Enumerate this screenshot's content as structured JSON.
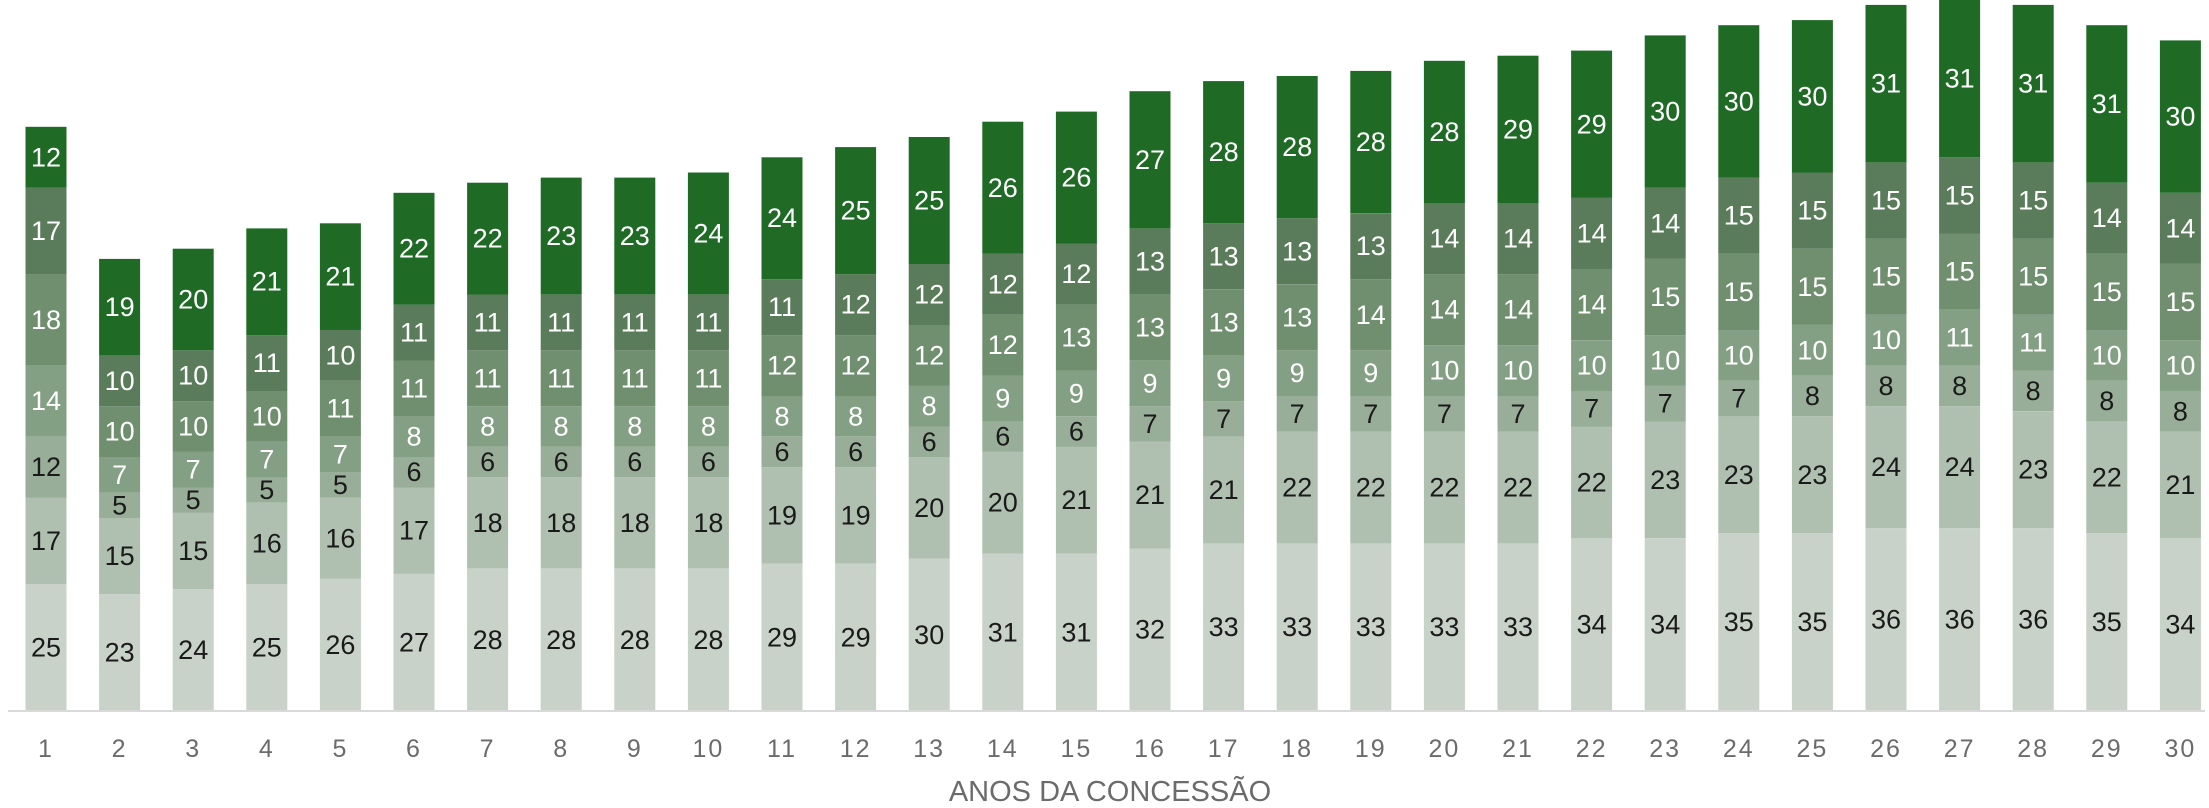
{
  "chart_data": {
    "type": "bar",
    "stacked": true,
    "xlabel": "ANOS DA CONCESSÃO",
    "ylabel": "",
    "title": "",
    "grid": false,
    "legend": "none",
    "categories": [
      "1",
      "2",
      "3",
      "4",
      "5",
      "6",
      "7",
      "8",
      "9",
      "10",
      "11",
      "12",
      "13",
      "14",
      "15",
      "16",
      "17",
      "18",
      "19",
      "20",
      "21",
      "22",
      "23",
      "24",
      "25",
      "26",
      "27",
      "28",
      "29",
      "30"
    ],
    "series": [
      {
        "color": "#c8d2c8",
        "label_color": "#1a1a1a",
        "values": [
          25,
          23,
          24,
          25,
          26,
          27,
          28,
          28,
          28,
          28,
          29,
          29,
          30,
          31,
          31,
          32,
          33,
          33,
          33,
          33,
          33,
          34,
          34,
          35,
          35,
          36,
          36,
          36,
          35,
          34
        ]
      },
      {
        "color": "#b0c0b0",
        "label_color": "#1a1a1a",
        "values": [
          17,
          15,
          15,
          16,
          16,
          17,
          18,
          18,
          18,
          18,
          19,
          19,
          20,
          20,
          21,
          21,
          21,
          22,
          22,
          22,
          22,
          22,
          23,
          23,
          23,
          24,
          24,
          23,
          22,
          21
        ]
      },
      {
        "color": "#99ae99",
        "label_color": "#1a1a1a",
        "values": [
          12,
          5,
          5,
          5,
          5,
          6,
          6,
          6,
          6,
          6,
          6,
          6,
          6,
          6,
          6,
          7,
          7,
          7,
          7,
          7,
          7,
          7,
          7,
          7,
          8,
          8,
          8,
          8,
          8,
          8
        ]
      },
      {
        "color": "#84a084",
        "label_color": "#ffffff",
        "values": [
          14,
          7,
          7,
          7,
          7,
          8,
          8,
          8,
          8,
          8,
          8,
          8,
          8,
          9,
          9,
          9,
          9,
          9,
          9,
          10,
          10,
          10,
          10,
          10,
          10,
          10,
          11,
          11,
          10,
          10
        ]
      },
      {
        "color": "#6f8f6f",
        "label_color": "#ffffff",
        "values": [
          18,
          10,
          10,
          10,
          11,
          11,
          11,
          11,
          11,
          11,
          12,
          12,
          12,
          12,
          13,
          13,
          13,
          13,
          14,
          14,
          14,
          14,
          15,
          15,
          15,
          15,
          15,
          15,
          15,
          15
        ]
      },
      {
        "color": "#5a7c5a",
        "label_color": "#ffffff",
        "values": [
          17,
          10,
          10,
          11,
          10,
          11,
          11,
          11,
          11,
          11,
          11,
          12,
          12,
          12,
          12,
          13,
          13,
          13,
          13,
          14,
          14,
          14,
          14,
          15,
          15,
          15,
          15,
          15,
          14,
          14
        ]
      },
      {
        "color": "#1f6b26",
        "label_color": "#ffffff",
        "values": [
          12,
          19,
          20,
          21,
          21,
          22,
          22,
          23,
          23,
          24,
          24,
          25,
          25,
          26,
          26,
          27,
          28,
          28,
          28,
          28,
          29,
          29,
          30,
          30,
          30,
          31,
          31,
          31,
          31,
          30
        ]
      }
    ]
  }
}
